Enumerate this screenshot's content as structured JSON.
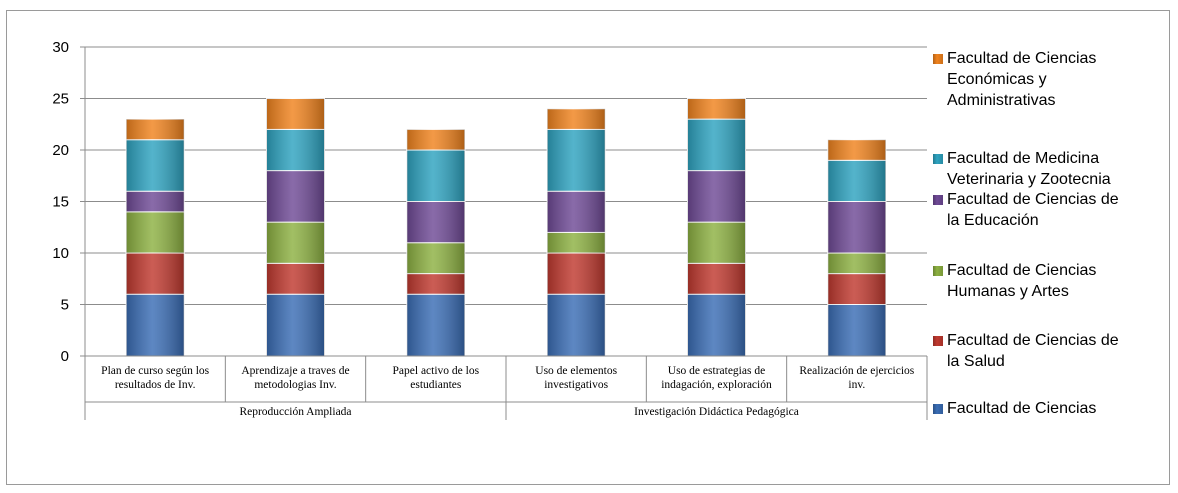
{
  "chart_data": {
    "type": "bar",
    "stacked": true,
    "categories": [
      "Plan de curso según los resultados de Inv.",
      "Aprendizaje a traves de metodologias Inv.",
      "Papel activo de los estudiantes",
      "Uso de elementos investigativos",
      "Uso de estrategias de indagación, exploración",
      "Realización de ejercicios inv."
    ],
    "category_lines": [
      [
        "Plan de curso según los",
        "resultados de Inv."
      ],
      [
        "Aprendizaje a traves de",
        "metodologias Inv."
      ],
      [
        "Papel activo de los",
        "estudiantes"
      ],
      [
        "Uso de elementos",
        "investigativos"
      ],
      [
        "Uso de estrategias de",
        "indagación, exploración"
      ],
      [
        "Realización de ejercicios",
        "inv."
      ]
    ],
    "groups": [
      {
        "label": "Reproducción Ampliada",
        "categories": [
          0,
          1,
          2
        ]
      },
      {
        "label": "Investigación Didáctica Pedagógica",
        "categories": [
          3,
          4,
          5
        ]
      }
    ],
    "series": [
      {
        "name": "Facultad de Ciencias",
        "color": "#3a6db5",
        "values": [
          6,
          6,
          6,
          6,
          6,
          5
        ]
      },
      {
        "name": "Facultad de Ciencias de la Salud",
        "color": "#c0392f",
        "values": [
          4,
          3,
          2,
          4,
          3,
          3
        ]
      },
      {
        "name": "Facultad de Ciencias Humanas y Artes",
        "color": "#8db142",
        "values": [
          4,
          4,
          3,
          2,
          4,
          2
        ]
      },
      {
        "name": "Facultad de Ciencias de la Educación",
        "color": "#6f4a96",
        "values": [
          2,
          5,
          4,
          4,
          5,
          5
        ]
      },
      {
        "name": "Facultad de Medicina Veterinaria y Zootecnia",
        "color": "#2ea3c0",
        "values": [
          5,
          4,
          5,
          6,
          5,
          4
        ]
      },
      {
        "name": "Facultad de Ciencias Económicas y Administrativas",
        "color": "#f0831e",
        "values": [
          2,
          3,
          2,
          2,
          2,
          2
        ]
      }
    ],
    "ylim": [
      0,
      30
    ],
    "yticks": [
      0,
      5,
      10,
      15,
      20,
      25,
      30
    ],
    "grid": true,
    "legend_position": "right"
  },
  "legend": {
    "items": [
      {
        "lines": [
          "Facultad de Ciencias",
          "Económicas y",
          "Administrativas"
        ],
        "color": "#f0831e"
      },
      {
        "lines": [
          "Facultad de Medicina",
          "Veterinaria y Zootecnia"
        ],
        "color": "#2ea3c0"
      },
      {
        "lines": [
          "Facultad de Ciencias de",
          "la Educación"
        ],
        "color": "#6f4a96"
      },
      {
        "lines": [
          "Facultad de Ciencias",
          "Humanas y Artes"
        ],
        "color": "#8db142"
      },
      {
        "lines": [
          "Facultad de Ciencias de",
          "la Salud"
        ],
        "color": "#c0392f"
      },
      {
        "lines": [
          "Facultad de Ciencias"
        ],
        "color": "#3a6db5"
      }
    ]
  }
}
